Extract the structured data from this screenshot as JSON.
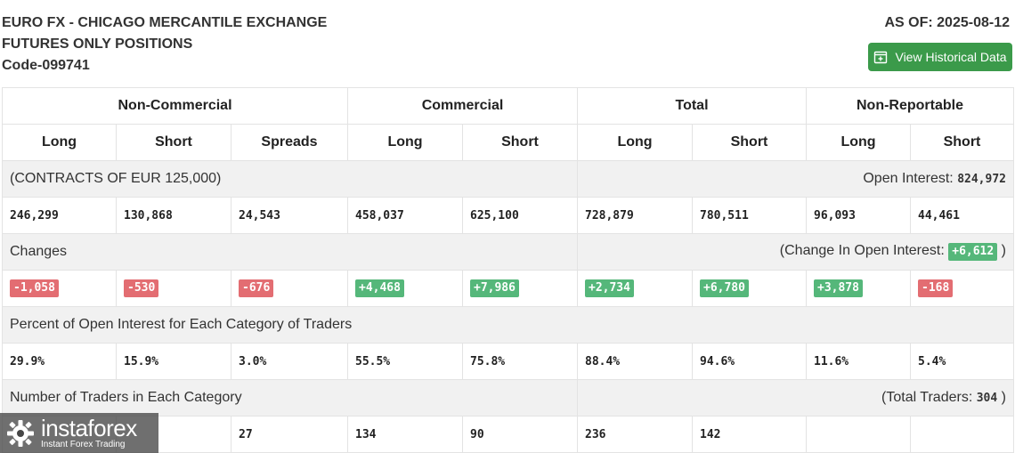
{
  "header": {
    "title_line1": "EURO FX - CHICAGO MERCANTILE EXCHANGE",
    "title_line2": "FUTURES ONLY POSITIONS",
    "code": "Code-099741",
    "as_of": "AS OF: 2025-08-12",
    "historical_button": "View Historical Data"
  },
  "table": {
    "groups": [
      "Non-Commercial",
      "Commercial",
      "Total",
      "Non-Reportable"
    ],
    "subheaders": [
      "Long",
      "Short",
      "Spreads",
      "Long",
      "Short",
      "Long",
      "Short",
      "Long",
      "Short"
    ],
    "contracts_label": "(CONTRACTS OF EUR 125,000)",
    "open_interest_label": "Open Interest:",
    "open_interest_value": "824,972",
    "positions": [
      "246,299",
      "130,868",
      "24,543",
      "458,037",
      "625,100",
      "728,879",
      "780,511",
      "96,093",
      "44,461"
    ],
    "changes_label": "Changes",
    "change_oi_label": "(Change In Open Interest:",
    "change_oi_value": "+6,612",
    "change_oi_close": ")",
    "changes": [
      "-1,058",
      "-530",
      "-676",
      "+4,468",
      "+7,986",
      "+2,734",
      "+6,780",
      "+3,878",
      "-168"
    ],
    "percent_label": "Percent of Open Interest for Each Category of Traders",
    "percents": [
      "29.9%",
      "15.9%",
      "3.0%",
      "55.5%",
      "75.8%",
      "88.4%",
      "94.6%",
      "11.6%",
      "5.4%"
    ],
    "traders_label": "Number of Traders in Each Category",
    "total_traders_label": "(Total Traders:",
    "total_traders_value": "304",
    "total_traders_close": ")",
    "traders": [
      "",
      "",
      "27",
      "134",
      "90",
      "236",
      "142",
      "",
      ""
    ]
  },
  "watermark": {
    "brand": "instaforex",
    "tagline": "Instant Forex Trading"
  },
  "colors": {
    "positive": "#55b77a",
    "negative": "#e36d72",
    "button": "#3b9a4a",
    "band": "#f1f1f1"
  }
}
